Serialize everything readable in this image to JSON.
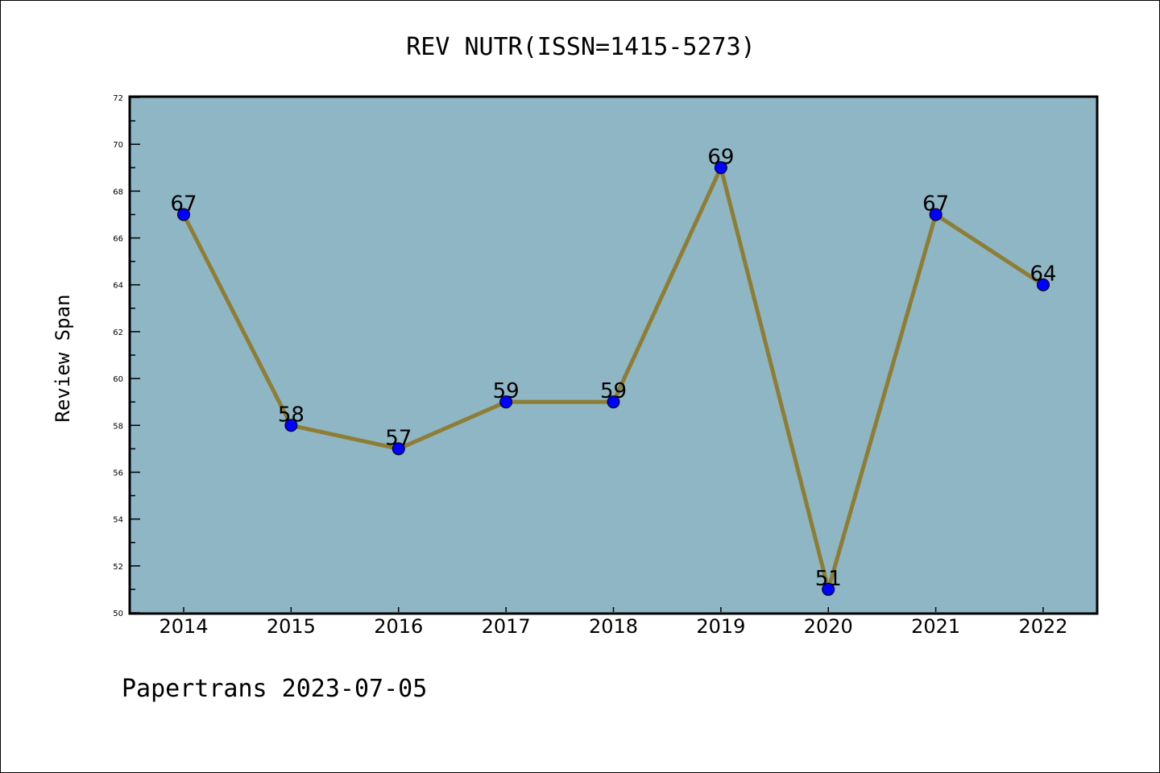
{
  "chart_data": {
    "type": "line",
    "title": "REV NUTR(ISSN=1415-5273)",
    "xlabel": "",
    "ylabel": "Review Span",
    "categories": [
      "2014",
      "2015",
      "2016",
      "2017",
      "2018",
      "2019",
      "2020",
      "2021",
      "2022"
    ],
    "values": [
      67,
      58,
      57,
      59,
      59,
      69,
      51,
      67,
      64
    ],
    "data_labels": [
      "67",
      "58",
      "57",
      "59",
      "59",
      "69",
      "51",
      "67",
      "64"
    ],
    "ylim": [
      50,
      72
    ],
    "yticks": [
      "50",
      "52",
      "54",
      "56",
      "58",
      "60",
      "62",
      "64",
      "66",
      "68",
      "70",
      "72"
    ],
    "grid": false,
    "colors": {
      "background": "#8fb6c4",
      "line": "#8e7d34",
      "marker": "#0000ff"
    }
  },
  "footer": "Papertrans 2023-07-05"
}
